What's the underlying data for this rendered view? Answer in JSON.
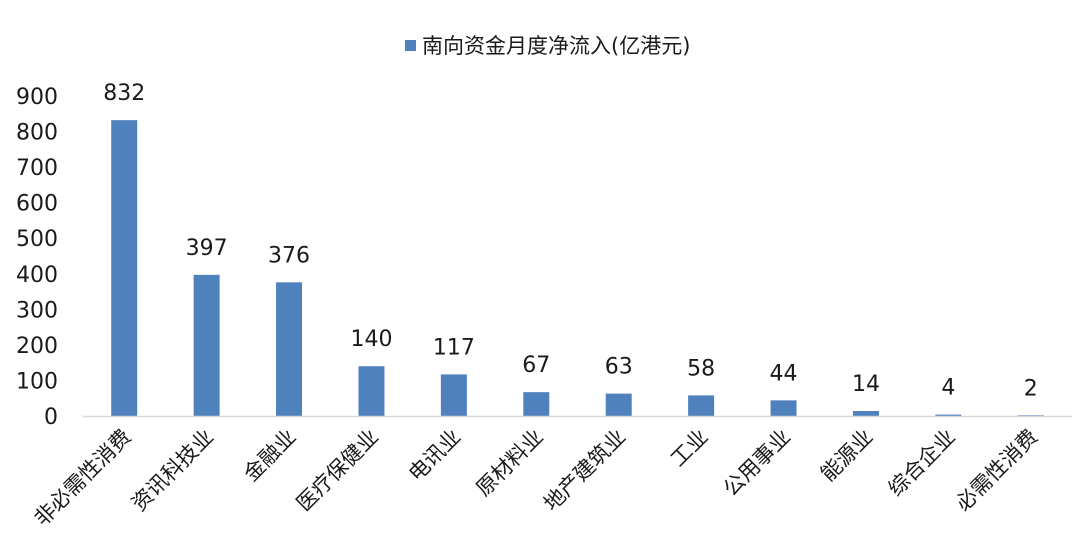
{
  "chart_data": {
    "type": "bar",
    "series": [
      {
        "name": "南向资金月度净流入(亿港元)",
        "color": "#4f81bd",
        "values": [
          832,
          397,
          376,
          140,
          117,
          67,
          63,
          58,
          44,
          14,
          4,
          2
        ]
      }
    ],
    "categories": [
      "非必需性消费",
      "资讯科技业",
      "金融业",
      "医疗保健业",
      "电讯业",
      "原材料业",
      "地产建筑业",
      "工业",
      "公用事业",
      "能源业",
      "综合企业",
      "必需性消费"
    ],
    "data_labels": [
      "832",
      "397",
      "376",
      "140",
      "117",
      "67",
      "63",
      "58",
      "44",
      "14",
      "4",
      "2"
    ],
    "y_ticks": [
      "0",
      "100",
      "200",
      "300",
      "400",
      "500",
      "600",
      "700",
      "800",
      "900"
    ],
    "ylim": [
      0,
      900
    ],
    "grid": false,
    "legend": "top-center",
    "title": "",
    "xlabel": "",
    "ylabel": ""
  }
}
